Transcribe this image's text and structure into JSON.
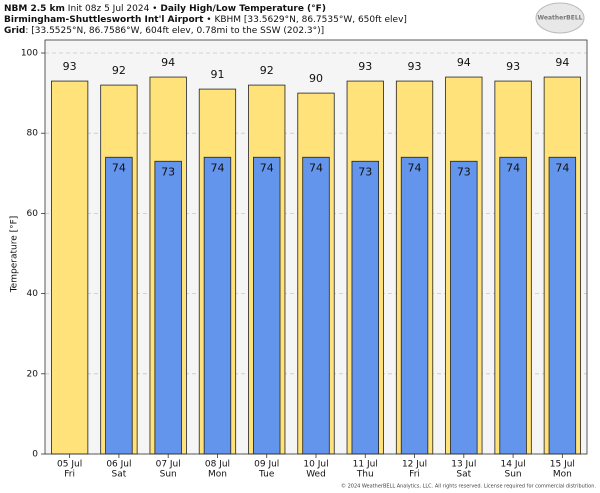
{
  "header": {
    "model": "NBM 2.5 km",
    "init": "Init 08z 5 Jul 2024",
    "separator": "•",
    "station": "Birmingham-Shuttlesworth Int'l Airport",
    "station_info": "• KBHM [33.5629°N, 86.7535°W, 650ft elev]",
    "grid_label": "Grid",
    "grid_info": ": [33.5525°N, 86.7586°W, 604ft elev, 0.78mi to the SSW (202.3°)]",
    "logo": "WeatherBELL"
  },
  "footer": "© 2024 WeatherBELL Analytics, LLC. All rights reserved. License required for commercial distribution.",
  "chart_data": {
    "type": "bar",
    "title": "Daily High/Low Temperature (°F)",
    "y_label": "Temperature [°F]",
    "categories": [
      "05 Jul",
      "06 Jul",
      "07 Jul",
      "08 Jul",
      "09 Jul",
      "10 Jul",
      "11 Jul",
      "12 Jul",
      "13 Jul",
      "14 Jul",
      "15 Jul"
    ],
    "weekdays": [
      "Fri",
      "Sat",
      "Sun",
      "Mon",
      "Tue",
      "Wed",
      "Thu",
      "Fri",
      "Sat",
      "Sun",
      "Mon"
    ],
    "series": [
      {
        "color": "#ffe27a",
        "values": [
          93,
          92,
          94,
          91,
          92,
          90,
          93,
          93,
          94,
          93,
          94
        ]
      },
      {
        "color": "#6495ed",
        "values": [
          null,
          74,
          73,
          74,
          74,
          74,
          73,
          74,
          73,
          74,
          74
        ]
      }
    ],
    "ylim": [
      0,
      100
    ],
    "yticks": [
      0,
      20,
      40,
      60,
      80,
      100
    ],
    "grid": true
  }
}
